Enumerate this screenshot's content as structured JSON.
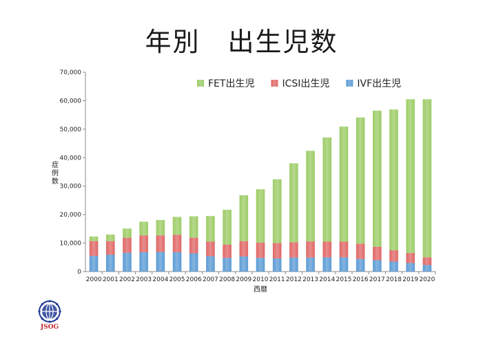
{
  "title": "年別　出生児数",
  "chart_data": {
    "type": "bar",
    "stacked": true,
    "categories": [
      "2000",
      "2001",
      "2002",
      "2003",
      "2004",
      "2005",
      "2006",
      "2007",
      "2008",
      "2009",
      "2010",
      "2011",
      "2012",
      "2013",
      "2014",
      "2015",
      "2016",
      "2017",
      "2018",
      "2019",
      "2020"
    ],
    "series": [
      {
        "name": "IVF出生児",
        "color": "#5b9bd5",
        "values": [
          5500,
          5900,
          6600,
          6800,
          6900,
          6800,
          6400,
          5400,
          4800,
          5300,
          4800,
          4600,
          4900,
          4900,
          5000,
          5000,
          4400,
          4000,
          3500,
          3000,
          2300
        ]
      },
      {
        "name": "ICSI出生児",
        "color": "#e06666",
        "values": [
          5200,
          4800,
          5300,
          5900,
          5800,
          6100,
          5500,
          5100,
          4700,
          5400,
          5400,
          5400,
          5400,
          5700,
          5500,
          5500,
          5400,
          4700,
          4000,
          3500,
          2700
        ]
      },
      {
        "name": "FET出生児",
        "color": "#9ccc65",
        "values": [
          1600,
          2300,
          3200,
          4800,
          5400,
          6300,
          7500,
          9000,
          12200,
          16100,
          18700,
          22400,
          27700,
          31800,
          36600,
          40400,
          44300,
          47800,
          49400,
          54000,
          55500
        ]
      }
    ],
    "legend_order": [
      "FET出生児",
      "ICSI出生児",
      "IVF出生児"
    ],
    "legend_position": "top-right",
    "xlabel": "西暦",
    "ylabel": "症例数",
    "ylim": [
      0,
      70000
    ],
    "yticks": [
      "0",
      "10,000",
      "20,000",
      "30,000",
      "40,000",
      "50,000",
      "60,000",
      "70,000"
    ],
    "grid": false
  },
  "logo": {
    "text": "JSOG",
    "color": "#c0282d",
    "globe_color": "#1f3a93"
  }
}
